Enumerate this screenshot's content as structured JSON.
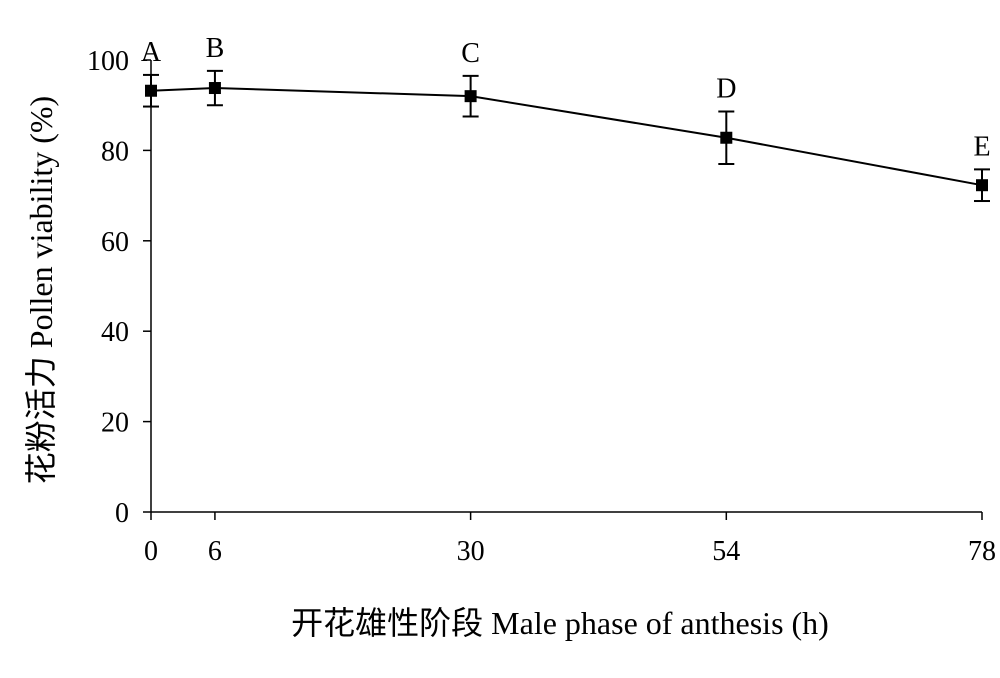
{
  "chart_data": {
    "type": "line",
    "title": "",
    "xlabel": "开花雄性阶段 Male phase of anthesis (h)",
    "ylabel": "花粉活力 Pollen viability (%)",
    "xlim": [
      0,
      78
    ],
    "ylim": [
      0,
      100
    ],
    "x_ticks": [
      0,
      6,
      30,
      54,
      78
    ],
    "y_ticks": [
      0,
      20,
      40,
      60,
      80,
      100
    ],
    "grid": false,
    "legend": "none",
    "series": [
      {
        "marker": "square",
        "points": [
          {
            "x": 0,
            "y": 93.2,
            "err": 3.5,
            "label": "A"
          },
          {
            "x": 6,
            "y": 93.8,
            "err": 3.8,
            "label": "B"
          },
          {
            "x": 30,
            "y": 92.0,
            "err": 4.5,
            "label": "C"
          },
          {
            "x": 54,
            "y": 82.8,
            "err": 5.8,
            "label": "D"
          },
          {
            "x": 78,
            "y": 72.3,
            "err": 3.5,
            "label": "E"
          }
        ]
      }
    ]
  }
}
